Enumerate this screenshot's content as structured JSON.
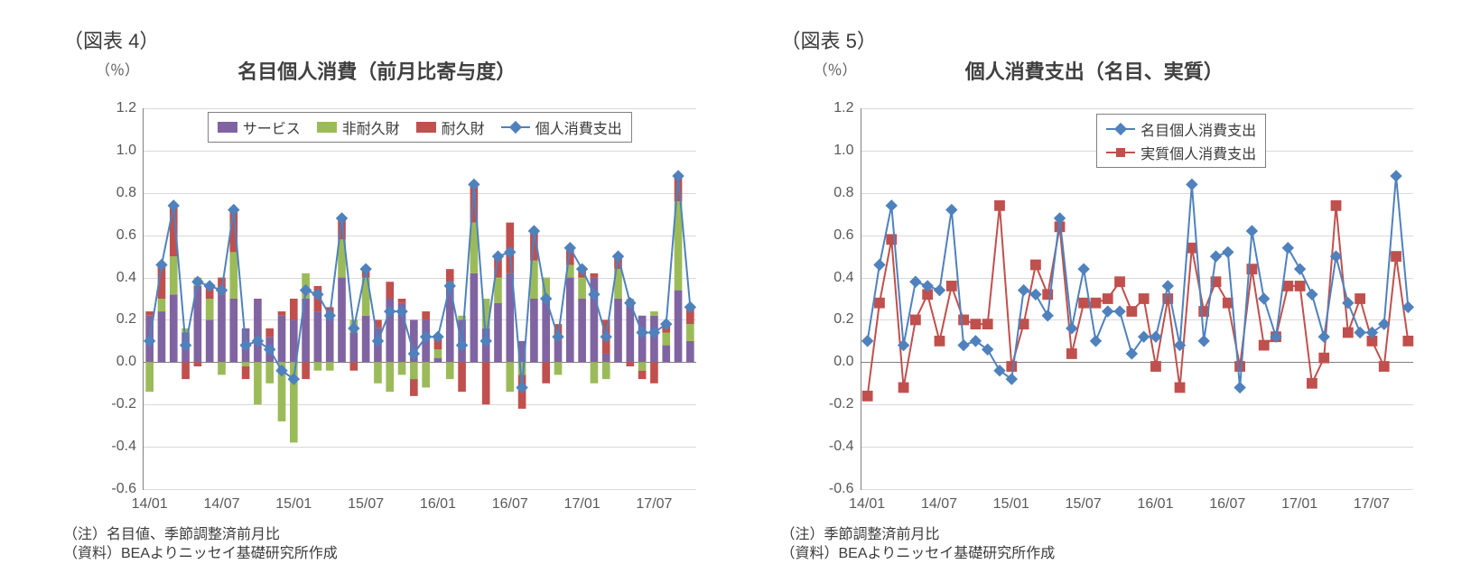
{
  "global": {
    "background_color": "#ffffff",
    "text_color": "#3b3b3b",
    "axis_tick_color": "#595959",
    "gridline_color": "#d9d9d9",
    "axis_line_color": "#808080",
    "font_family": "MS PGothic, Hiragino Kaku Gothic Pro, Meiryo, sans-serif"
  },
  "periods": [
    "14/01",
    "14/02",
    "14/03",
    "14/04",
    "14/05",
    "14/06",
    "14/07",
    "14/08",
    "14/09",
    "14/10",
    "14/11",
    "14/12",
    "15/01",
    "15/02",
    "15/03",
    "15/04",
    "15/05",
    "15/06",
    "15/07",
    "15/08",
    "15/09",
    "15/10",
    "15/11",
    "15/12",
    "16/01",
    "16/02",
    "16/03",
    "16/04",
    "16/05",
    "16/06",
    "16/07",
    "16/08",
    "16/09",
    "16/10",
    "16/11",
    "16/12",
    "17/01",
    "17/02",
    "17/03",
    "17/04",
    "17/05",
    "17/06",
    "17/07",
    "17/08",
    "17/09",
    "17/10"
  ],
  "chart4": {
    "type": "stacked_bar_with_line",
    "fig_label": "（図表 4）",
    "title": "名目個人消費（前月比寄与度）",
    "y_unit_label": "（％）",
    "ylim": [
      -0.6,
      1.2
    ],
    "ytick_step": 0.2,
    "ytick_labels": [
      "-0.6",
      "-0.4",
      "-0.2",
      "0.0",
      "0.2",
      "0.4",
      "0.6",
      "0.8",
      "1.0",
      "1.2"
    ],
    "x_labels_shown": [
      "14/01",
      "14/07",
      "15/01",
      "15/07",
      "16/01",
      "16/07",
      "17/01",
      "17/07"
    ],
    "legend": {
      "items": [
        {
          "key": "services",
          "label": "サービス",
          "type": "swatch",
          "color": "#8064a2"
        },
        {
          "key": "nondurable",
          "label": "非耐久財",
          "type": "swatch",
          "color": "#9bbb59"
        },
        {
          "key": "durable",
          "label": "耐久財",
          "type": "swatch",
          "color": "#c0504d"
        },
        {
          "key": "pce",
          "label": "個人消費支出",
          "type": "line",
          "color": "#4f81bd",
          "marker": "diamond"
        }
      ],
      "border_color": "#808080"
    },
    "series": {
      "services": {
        "color": "#8064a2",
        "values": [
          0.22,
          0.24,
          0.32,
          0.14,
          0.36,
          0.2,
          0.32,
          0.3,
          0.16,
          0.3,
          0.12,
          0.22,
          0.2,
          0.3,
          0.24,
          0.22,
          0.4,
          0.14,
          0.22,
          0.16,
          0.3,
          0.28,
          0.2,
          0.2,
          0.02,
          0.38,
          0.2,
          0.42,
          0.16,
          0.28,
          0.42,
          0.1,
          0.3,
          0.3,
          0.1,
          0.4,
          0.3,
          0.4,
          0.04,
          0.3,
          0.28,
          0.22,
          0.22,
          0.08,
          0.34,
          0.1
        ]
      },
      "nondurable": {
        "color": "#9bbb59",
        "values": [
          -0.14,
          0.06,
          0.18,
          0.02,
          0.04,
          0.1,
          -0.06,
          0.22,
          -0.02,
          -0.2,
          -0.1,
          -0.28,
          -0.38,
          0.12,
          -0.04,
          -0.04,
          0.18,
          0.06,
          0.18,
          -0.1,
          -0.14,
          -0.06,
          -0.08,
          -0.12,
          0.04,
          -0.08,
          0.02,
          0.24,
          0.14,
          0.12,
          -0.14,
          -0.06,
          0.18,
          0.1,
          -0.06,
          0.06,
          0.1,
          -0.1,
          -0.08,
          0.14,
          0.02,
          -0.04,
          0.02,
          0.06,
          0.42,
          0.08
        ]
      },
      "durable": {
        "color": "#c0504d",
        "values": [
          0.02,
          0.16,
          0.24,
          -0.08,
          -0.02,
          0.06,
          0.08,
          0.2,
          -0.06,
          0.0,
          0.04,
          0.02,
          0.1,
          -0.08,
          0.12,
          0.04,
          0.1,
          -0.04,
          0.04,
          0.04,
          0.08,
          0.02,
          -0.08,
          0.04,
          0.06,
          0.06,
          -0.14,
          0.18,
          -0.2,
          0.1,
          0.24,
          -0.16,
          0.14,
          -0.1,
          0.08,
          0.08,
          0.04,
          0.02,
          0.16,
          0.06,
          -0.02,
          -0.04,
          -0.1,
          0.04,
          0.12,
          0.08
        ]
      },
      "pce_line": {
        "color": "#4f81bd",
        "marker": "diamond",
        "marker_size": 6,
        "line_width": 2,
        "values": [
          0.1,
          0.46,
          0.74,
          0.08,
          0.38,
          0.36,
          0.34,
          0.72,
          0.08,
          0.1,
          0.06,
          -0.04,
          -0.08,
          0.34,
          0.32,
          0.22,
          0.68,
          0.16,
          0.44,
          0.1,
          0.24,
          0.24,
          0.04,
          0.12,
          0.12,
          0.36,
          0.08,
          0.84,
          0.1,
          0.5,
          0.52,
          -0.12,
          0.62,
          0.3,
          0.12,
          0.54,
          0.44,
          0.32,
          0.12,
          0.5,
          0.28,
          0.14,
          0.14,
          0.18,
          0.88,
          0.26
        ]
      }
    },
    "bar_width_ratio": 0.65,
    "footnote1": "（注）名目値、季節調整済前月比",
    "footnote2": "（資料）BEAよりニッセイ基礎研究所作成",
    "title_fontsize": 22,
    "tick_fontsize": 16
  },
  "chart5": {
    "type": "multi_line",
    "fig_label": "（図表 5）",
    "title": "個人消費支出（名目、実質）",
    "y_unit_label": "（％）",
    "ylim": [
      -0.6,
      1.2
    ],
    "ytick_step": 0.2,
    "ytick_labels": [
      "-0.6",
      "-0.4",
      "-0.2",
      "0.0",
      "0.2",
      "0.4",
      "0.6",
      "0.8",
      "1.0",
      "1.2"
    ],
    "x_labels_shown": [
      "14/01",
      "14/07",
      "15/01",
      "15/07",
      "16/01",
      "16/07",
      "17/01",
      "17/07"
    ],
    "legend": {
      "items": [
        {
          "key": "nominal",
          "label": "名目個人消費支出",
          "type": "line",
          "color": "#4f81bd",
          "marker": "diamond"
        },
        {
          "key": "real",
          "label": "実質個人消費支出",
          "type": "line",
          "color": "#c0504d",
          "marker": "square"
        }
      ],
      "border_color": "#808080"
    },
    "series": {
      "nominal": {
        "color": "#4f81bd",
        "marker": "diamond",
        "marker_size": 6,
        "line_width": 2,
        "values": [
          0.1,
          0.46,
          0.74,
          0.08,
          0.38,
          0.36,
          0.34,
          0.72,
          0.08,
          0.1,
          0.06,
          -0.04,
          -0.08,
          0.34,
          0.32,
          0.22,
          0.68,
          0.16,
          0.44,
          0.1,
          0.24,
          0.24,
          0.04,
          0.12,
          0.12,
          0.36,
          0.08,
          0.84,
          0.1,
          0.5,
          0.52,
          -0.12,
          0.62,
          0.3,
          0.12,
          0.54,
          0.44,
          0.32,
          0.12,
          0.5,
          0.28,
          0.14,
          0.14,
          0.18,
          0.88,
          0.26
        ]
      },
      "real": {
        "color": "#c0504d",
        "marker": "square",
        "marker_size": 6,
        "line_width": 2,
        "values": [
          -0.16,
          0.28,
          0.58,
          -0.12,
          0.2,
          0.32,
          0.1,
          0.36,
          0.2,
          0.18,
          0.18,
          0.74,
          -0.02,
          0.18,
          0.46,
          0.32,
          0.64,
          0.04,
          0.28,
          0.28,
          0.3,
          0.38,
          0.24,
          0.3,
          -0.02,
          0.3,
          -0.12,
          0.54,
          0.24,
          0.38,
          0.28,
          -0.02,
          0.44,
          0.08,
          0.12,
          0.36,
          0.36,
          -0.1,
          0.02,
          0.74,
          0.14,
          0.3,
          0.1,
          -0.02,
          0.5,
          0.1
        ]
      }
    },
    "footnote1": "（注）季節調整済前月比",
    "footnote2": "（資料）BEAよりニッセイ基礎研究所作成",
    "title_fontsize": 22,
    "tick_fontsize": 16
  }
}
